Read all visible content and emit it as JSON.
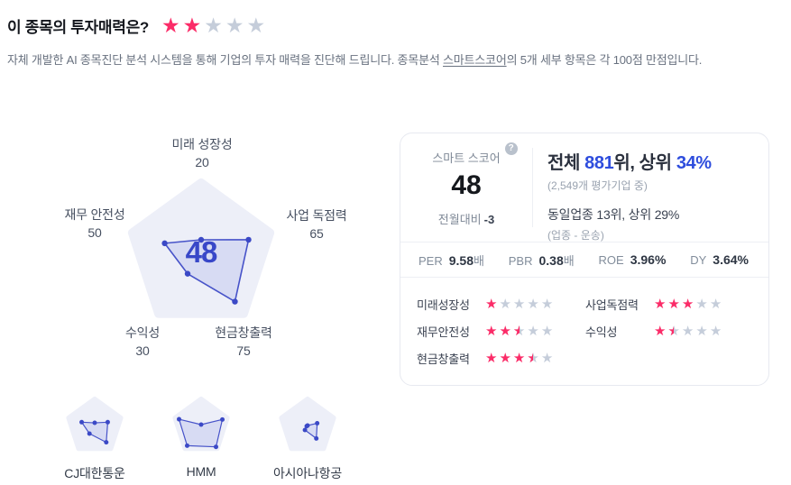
{
  "colors": {
    "star_on": "#fb2c68",
    "star_off": "#c5cdda",
    "accent_blue": "#2e4ddd",
    "score_number": "#3847c8",
    "radar_stroke": "#4753c9",
    "radar_dot": "#3b49c6",
    "radar_fill": "rgba(93,107,215,0.15)",
    "pentagon_bg": "#edeff8"
  },
  "header": {
    "title": "이 종목의 투자매력은?",
    "rating": 2,
    "description_before": "자체 개발한 AI 종목진단 분석 시스템을 통해 기업의 투자 매력을 진단해 드립니다. 종목분석 ",
    "description_link": "스마트스코어",
    "description_after": "의 5개 세부 항목은 각 100점 만점입니다."
  },
  "chart_data": {
    "type": "radar",
    "max": 100,
    "axes": [
      "미래 성장성",
      "사업 독점력",
      "현금창출력",
      "수익성",
      "재무 안전성"
    ],
    "main": {
      "center_value": "48",
      "values": [
        20,
        65,
        75,
        30,
        50
      ]
    },
    "peers": [
      {
        "name": "CJ대한통운",
        "values": [
          12,
          46,
          66,
          30,
          46
        ]
      },
      {
        "name": "HMM",
        "values": [
          6,
          75,
          85,
          80,
          78
        ]
      },
      {
        "name": "아시아나항공",
        "values": [
          3,
          34,
          50,
          15,
          3
        ]
      }
    ]
  },
  "score_card": {
    "score_label": "스마트 스코어",
    "help": "?",
    "score": "48",
    "mom_label": "전월대비",
    "mom_value": "-3",
    "rank": {
      "prefix": "전체 ",
      "value": "881",
      "middle": "위, 상위 ",
      "percent": "34%"
    },
    "rank_note": "(2,549개 평가기업 중)",
    "industry_rank": "동일업종 13위, 상위 29%",
    "industry_note": "(업종 - 운송)",
    "metrics": [
      {
        "label": "PER",
        "value": "9.58",
        "unit": "배",
        "unit_class": "unit muted"
      },
      {
        "label": "PBR",
        "value": "0.38",
        "unit": "배",
        "unit_class": "unit muted"
      },
      {
        "label": "ROE",
        "value": "3.96",
        "unit": "%",
        "unit_class": "unit strong"
      },
      {
        "label": "DY",
        "value": "3.64",
        "unit": "%",
        "unit_class": "unit strong"
      }
    ],
    "ratings": [
      {
        "label": "미래성장성",
        "stars": 1
      },
      {
        "label": "사업독점력",
        "stars": 3
      },
      {
        "label": "재무안전성",
        "stars": 2.5
      },
      {
        "label": "수익성",
        "stars": 1.5
      },
      {
        "label": "현금창출력",
        "stars": 3.5
      }
    ]
  }
}
